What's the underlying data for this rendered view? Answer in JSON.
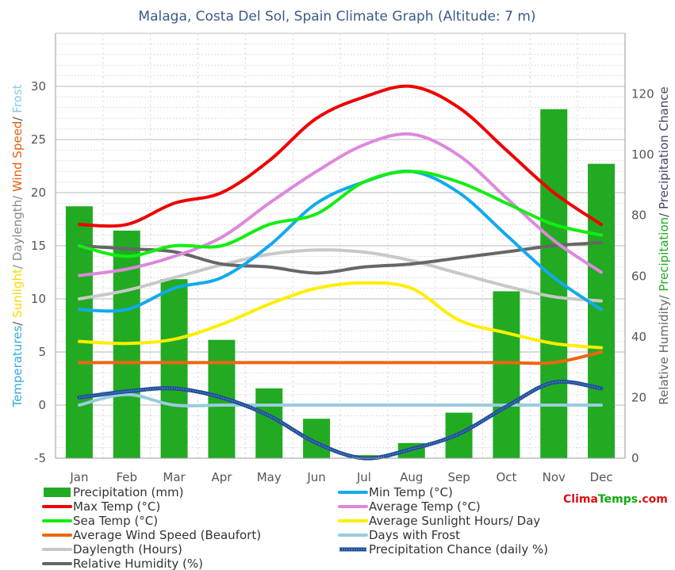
{
  "chart_data": {
    "type": "bar+line",
    "title": "Malaga, Costa Del Sol, Spain Climate Graph (Altitude: 7 m)",
    "brand": {
      "part1": "Clima",
      "part2": "Temps",
      "part3": ".com"
    },
    "categories": [
      "Jan",
      "Feb",
      "Mar",
      "Apr",
      "May",
      "Jun",
      "Jul",
      "Aug",
      "Sep",
      "Oct",
      "Nov",
      "Dec"
    ],
    "y_left": {
      "range": [
        -5,
        35
      ],
      "ticks": [
        -5,
        0,
        5,
        10,
        15,
        20,
        25,
        30
      ],
      "label_parts": [
        {
          "text": "Temperatures",
          "color": "#33aadd"
        },
        {
          "text": "/ ",
          "color": "#555555"
        },
        {
          "text": "Sunlight",
          "color": "#ffd700"
        },
        {
          "text": "/ Daylength/ ",
          "color": "#888888"
        },
        {
          "text": "Wind Speed",
          "color": "#e06010"
        },
        {
          "text": "/ ",
          "color": "#555555"
        },
        {
          "text": "Frost",
          "color": "#88ccdd"
        }
      ]
    },
    "y_right": {
      "range": [
        0,
        140
      ],
      "ticks": [
        0,
        20,
        40,
        60,
        80,
        100,
        120
      ],
      "label_parts": [
        {
          "text": "Relative Humidity/ ",
          "color": "#666666"
        },
        {
          "text": "Precipitation",
          "color": "#22aa22"
        },
        {
          "text": "/ Precipitation Chance",
          "color": "#444466"
        }
      ]
    },
    "grid": true,
    "series": [
      {
        "key": "precip",
        "name": "Precipitation (mm)",
        "kind": "bar",
        "axis": "right",
        "color": "#22aa22",
        "values": [
          83,
          75,
          59,
          39,
          23,
          13,
          1,
          5,
          15,
          55,
          115,
          97
        ]
      },
      {
        "key": "maxt",
        "name": "Max Temp (°C)",
        "kind": "line",
        "axis": "left",
        "color": "#ee0000",
        "values": [
          17,
          17,
          19,
          20,
          23,
          27,
          29,
          30,
          28,
          24,
          20,
          17
        ]
      },
      {
        "key": "mint",
        "name": "Min Temp (°C)",
        "kind": "line",
        "axis": "left",
        "color": "#11aaee",
        "values": [
          9,
          9,
          11,
          12,
          15,
          19,
          21,
          22,
          20,
          16,
          12,
          9
        ]
      },
      {
        "key": "avgt",
        "name": "Average Temp (°C)",
        "kind": "line",
        "axis": "left",
        "color": "#dd88dd",
        "values": [
          12.2,
          12.8,
          14,
          15.8,
          19,
          22,
          24.5,
          25.5,
          23.5,
          19.5,
          15.5,
          12.5
        ]
      },
      {
        "key": "sea",
        "name": "Sea Temp (°C)",
        "kind": "line",
        "axis": "left",
        "color": "#11ee11",
        "values": [
          15,
          14,
          15,
          15,
          17,
          18,
          21,
          22,
          21,
          19,
          17,
          16
        ]
      },
      {
        "key": "sun",
        "name": "Average Sunlight Hours/ Day",
        "kind": "line",
        "axis": "left",
        "color": "#ffee00",
        "values": [
          6,
          5.8,
          6.2,
          7.6,
          9.5,
          11,
          11.5,
          11,
          8,
          6.8,
          5.8,
          5.4
        ]
      },
      {
        "key": "wind",
        "name": "Average Wind Speed (Beaufort)",
        "kind": "line",
        "axis": "left",
        "color": "#ee6611",
        "values": [
          4,
          4,
          4,
          4,
          4,
          4,
          4,
          4,
          4,
          4,
          4,
          5
        ]
      },
      {
        "key": "frost",
        "name": "Days with Frost",
        "kind": "line",
        "axis": "left",
        "color": "#99ccdd",
        "values": [
          0,
          1,
          0,
          0,
          0,
          0,
          0,
          0,
          0,
          0,
          0,
          0
        ]
      },
      {
        "key": "daylen",
        "name": "Daylength (Hours)",
        "kind": "line",
        "axis": "left",
        "color": "#c8c8c8",
        "values": [
          10,
          10.8,
          12,
          13.2,
          14.2,
          14.6,
          14.4,
          13.6,
          12.4,
          11.2,
          10.2,
          9.8
        ]
      },
      {
        "key": "pchance",
        "name": "Precipitation Chance (daily %)",
        "kind": "line",
        "axis": "right",
        "color": "#2255aa",
        "values": [
          20,
          22,
          23,
          20,
          14,
          5,
          0,
          3,
          8,
          17,
          25,
          23
        ]
      },
      {
        "key": "humid",
        "name": "Relative Humidity (%)",
        "kind": "line",
        "axis": "right",
        "color": "#666666",
        "values": [
          70,
          69,
          68,
          64,
          63,
          61,
          63,
          64,
          66,
          68,
          70,
          71
        ]
      }
    ],
    "legend": {
      "placement": "bottom",
      "left": [
        "precip",
        "maxt",
        "sea",
        "wind",
        "daylen",
        "humid"
      ],
      "right": [
        "mint",
        "avgt",
        "sun",
        "frost",
        "pchance"
      ]
    }
  }
}
